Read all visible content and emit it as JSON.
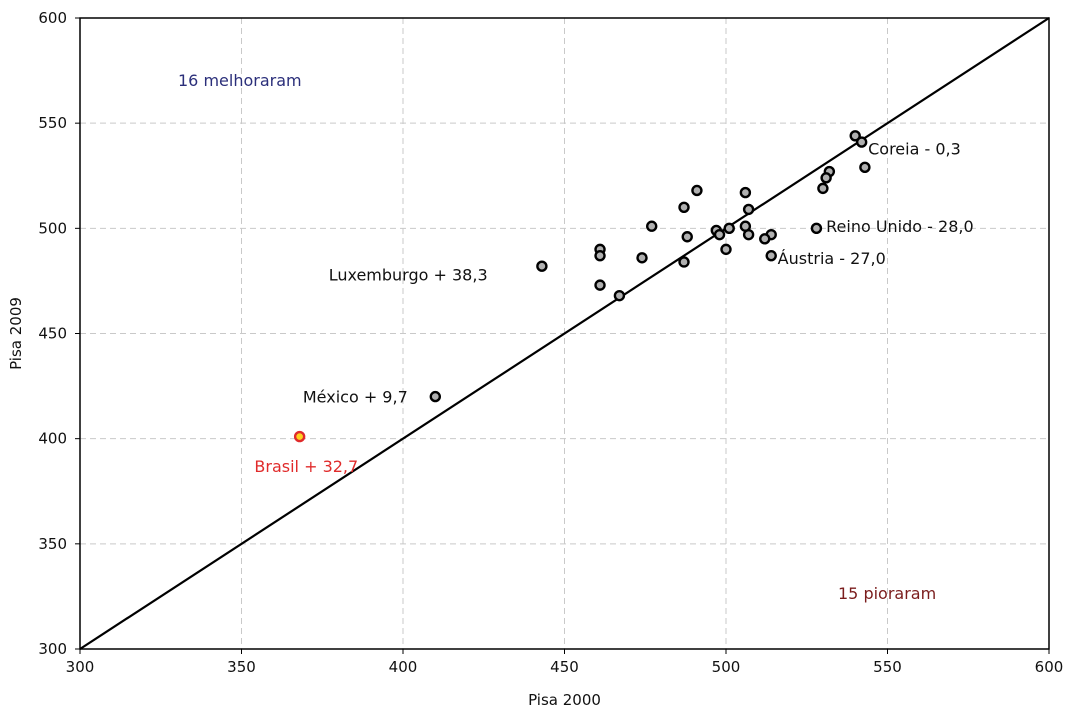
{
  "chart_data": {
    "type": "scatter",
    "title": "",
    "xlabel": "Pisa 2000",
    "ylabel": "Pisa 2009",
    "xlim": [
      300,
      600
    ],
    "ylim": [
      300,
      600
    ],
    "xticks": [
      "300",
      "350",
      "400",
      "450",
      "500",
      "550",
      "600"
    ],
    "yticks": [
      "300",
      "350",
      "400",
      "450",
      "500",
      "550",
      "600"
    ],
    "grid": true,
    "reference_line": {
      "from": [
        300,
        300
      ],
      "to": [
        600,
        600
      ]
    },
    "colors": {
      "point_fill": "#b0b0b0",
      "point_stroke": "#000000",
      "highlight_fill": "#ffd21f",
      "highlight_stroke": "#e02b2b",
      "improved_note": "#2b2f7a",
      "worsened_note": "#7a1c1c",
      "brasil_label": "#e02b2b"
    },
    "notes": {
      "improved": "16 melhoraram",
      "worsened": "15 pioraram"
    },
    "series": [
      {
        "points": [
          {
            "x": 540,
            "y": 544
          },
          {
            "x": 542,
            "y": 541
          },
          {
            "x": 543,
            "y": 529
          },
          {
            "x": 532,
            "y": 527
          },
          {
            "x": 531,
            "y": 524
          },
          {
            "x": 530,
            "y": 519
          },
          {
            "x": 528,
            "y": 500
          },
          {
            "x": 514,
            "y": 497
          },
          {
            "x": 512,
            "y": 495
          },
          {
            "x": 514,
            "y": 487
          },
          {
            "x": 507,
            "y": 509
          },
          {
            "x": 506,
            "y": 517
          },
          {
            "x": 507,
            "y": 497
          },
          {
            "x": 506,
            "y": 501
          },
          {
            "x": 501,
            "y": 500
          },
          {
            "x": 500,
            "y": 490
          },
          {
            "x": 497,
            "y": 499
          },
          {
            "x": 498,
            "y": 497
          },
          {
            "x": 491,
            "y": 518
          },
          {
            "x": 487,
            "y": 510
          },
          {
            "x": 488,
            "y": 496
          },
          {
            "x": 487,
            "y": 484
          },
          {
            "x": 477,
            "y": 501
          },
          {
            "x": 474,
            "y": 486
          },
          {
            "x": 467,
            "y": 468
          },
          {
            "x": 461,
            "y": 490
          },
          {
            "x": 461,
            "y": 487
          },
          {
            "x": 461,
            "y": 473
          },
          {
            "x": 443,
            "y": 482
          },
          {
            "x": 410,
            "y": 420
          },
          {
            "x": 368,
            "y": 401,
            "highlight": true
          }
        ]
      }
    ],
    "annotations": [
      {
        "text": "Coreia - 0,3",
        "x": 544,
        "y": 538
      },
      {
        "text": "Reino Unido - 28,0",
        "x": 531,
        "y": 501
      },
      {
        "text": "Áustria - 27,0",
        "x": 516,
        "y": 486
      },
      {
        "text": "Luxemburgo + 38,3",
        "x": 377,
        "y": 478
      },
      {
        "text": "México + 9,7",
        "x": 369,
        "y": 420
      },
      {
        "text": "Brasil + 32,7",
        "x": 354,
        "y": 387,
        "highlight": true
      }
    ]
  }
}
